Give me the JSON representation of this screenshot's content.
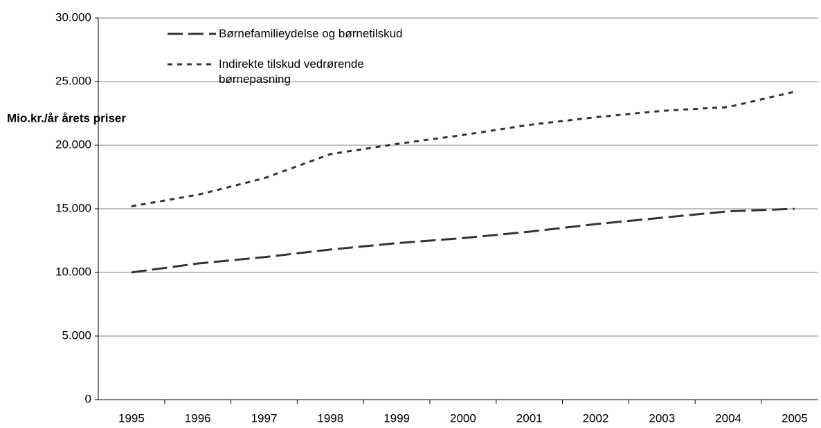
{
  "chart_data": {
    "type": "line",
    "y_label": "Mio.kr./år årets priser",
    "categories": [
      "1995",
      "1996",
      "1997",
      "1998",
      "1999",
      "2000",
      "2001",
      "2002",
      "2003",
      "2004",
      "2005"
    ],
    "series": [
      {
        "name": "Børnefamilieydelse og børnetilskud",
        "color": "#333333",
        "dash": "long",
        "values": [
          10000,
          10700,
          11200,
          11800,
          12300,
          12700,
          13200,
          13800,
          14300,
          14800,
          15000
        ]
      },
      {
        "name": "Indirekte tilskud vedrørende børnepasning",
        "color": "#333333",
        "dash": "short",
        "values": [
          15200,
          16100,
          17400,
          19300,
          20100,
          20800,
          21600,
          22200,
          22700,
          23000,
          24200
        ]
      }
    ],
    "ylim": [
      0,
      30000
    ],
    "yticks": [
      0,
      {
        "value": 5000,
        "label": "5.000"
      },
      {
        "value": 10000,
        "label": "10.000"
      },
      {
        "value": 15000,
        "label": "15.000"
      },
      {
        "value": 20000,
        "label": "20.000"
      },
      {
        "value": 25000,
        "label": "25.000"
      },
      {
        "value": 30000,
        "label": "30.000"
      }
    ],
    "grid": true,
    "legend": "top-left"
  }
}
